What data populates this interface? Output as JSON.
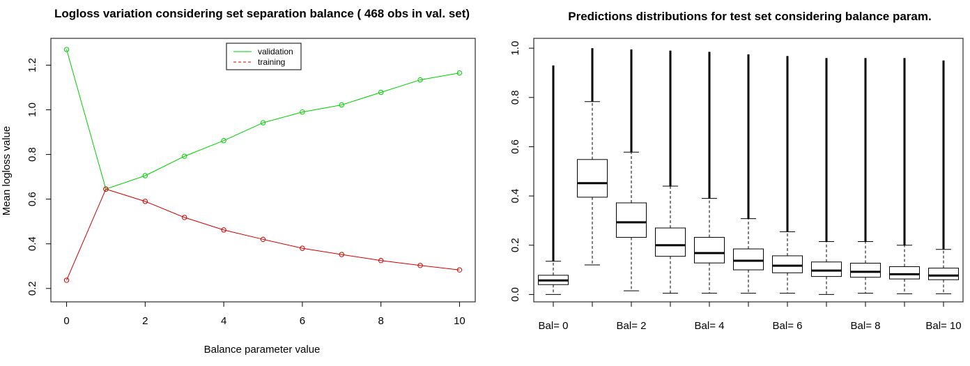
{
  "chart_data": [
    {
      "type": "line",
      "title": "Logloss variation considering set separation balance ( 468 obs in val. set)",
      "xlabel": "Balance parameter value",
      "ylabel": "Mean logloss value",
      "xlim": [
        0,
        10
      ],
      "ylim": [
        0.14,
        1.32
      ],
      "x_ticks": [
        "0",
        "2",
        "4",
        "6",
        "8",
        "10"
      ],
      "y_ticks": [
        "0.2",
        "0.4",
        "0.6",
        "0.8",
        "1.0",
        "1.2"
      ],
      "x": [
        0,
        1,
        2,
        3,
        4,
        5,
        6,
        7,
        8,
        9,
        10
      ],
      "legend": {
        "placement": "top-center"
      },
      "series": [
        {
          "name": "validation",
          "color": "#00cc00",
          "style": "solid",
          "values": [
            1.27,
            0.645,
            0.705,
            0.792,
            0.862,
            0.942,
            0.99,
            1.022,
            1.078,
            1.134,
            1.165
          ]
        },
        {
          "name": "training",
          "color": "#cc0000",
          "style": "dashed",
          "values": [
            0.237,
            0.645,
            0.59,
            0.518,
            0.462,
            0.42,
            0.38,
            0.352,
            0.325,
            0.303,
            0.283
          ]
        }
      ]
    },
    {
      "type": "box",
      "title": "Predictions distributions for test set considering balance param.",
      "ylim": [
        -0.03,
        1.04
      ],
      "y_ticks": [
        "0.0",
        "0.2",
        "0.4",
        "0.6",
        "0.8",
        "1.0"
      ],
      "x_tick_labels": [
        "Bal= 0",
        "Bal= 2",
        "Bal= 4",
        "Bal= 6",
        "Bal= 8",
        "Bal= 10"
      ],
      "boxes": [
        {
          "bal": 0,
          "min": 0.0,
          "q1": 0.04,
          "median": 0.057,
          "q3": 0.078,
          "whisker_high": 0.135,
          "outlier_max": 0.93
        },
        {
          "bal": 1,
          "min": 0.12,
          "q1": 0.395,
          "median": 0.452,
          "q3": 0.548,
          "whisker_high": 0.783,
          "outlier_max": 1.0
        },
        {
          "bal": 2,
          "min": 0.015,
          "q1": 0.232,
          "median": 0.293,
          "q3": 0.372,
          "whisker_high": 0.578,
          "outlier_max": 0.995
        },
        {
          "bal": 3,
          "min": 0.005,
          "q1": 0.155,
          "median": 0.2,
          "q3": 0.27,
          "whisker_high": 0.44,
          "outlier_max": 0.99
        },
        {
          "bal": 4,
          "min": 0.005,
          "q1": 0.128,
          "median": 0.168,
          "q3": 0.232,
          "whisker_high": 0.39,
          "outlier_max": 0.985
        },
        {
          "bal": 5,
          "min": 0.005,
          "q1": 0.1,
          "median": 0.137,
          "q3": 0.185,
          "whisker_high": 0.308,
          "outlier_max": 0.975
        },
        {
          "bal": 6,
          "min": 0.005,
          "q1": 0.088,
          "median": 0.117,
          "q3": 0.157,
          "whisker_high": 0.255,
          "outlier_max": 0.968
        },
        {
          "bal": 7,
          "min": 0.0,
          "q1": 0.073,
          "median": 0.097,
          "q3": 0.132,
          "whisker_high": 0.215,
          "outlier_max": 0.96
        },
        {
          "bal": 8,
          "min": 0.005,
          "q1": 0.07,
          "median": 0.092,
          "q3": 0.127,
          "whisker_high": 0.215,
          "outlier_max": 0.96
        },
        {
          "bal": 9,
          "min": 0.003,
          "q1": 0.063,
          "median": 0.082,
          "q3": 0.113,
          "whisker_high": 0.2,
          "outlier_max": 0.96
        },
        {
          "bal": 10,
          "min": 0.003,
          "q1": 0.06,
          "median": 0.077,
          "q3": 0.107,
          "whisker_high": 0.183,
          "outlier_max": 0.95
        }
      ]
    }
  ]
}
